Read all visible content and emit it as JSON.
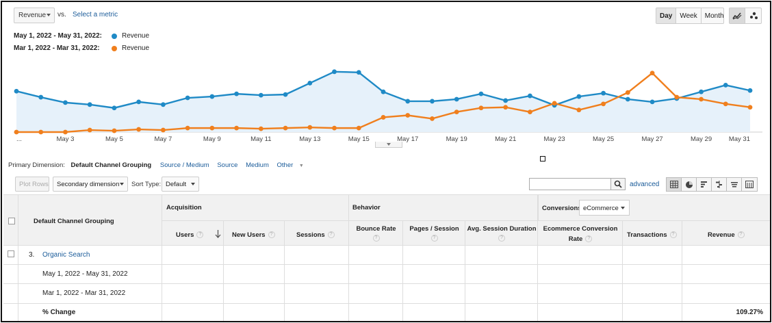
{
  "header": {
    "metric_select": "Revenue",
    "vs_label": "vs.",
    "select_metric_link": "Select a metric",
    "granularity": [
      {
        "label": "Day",
        "active": true
      },
      {
        "label": "Week",
        "active": false
      },
      {
        "label": "Month",
        "active": false
      }
    ],
    "chart_type_icons": [
      "line-chart-icon",
      "motion-chart-icon"
    ]
  },
  "legend": [
    {
      "range": "May 1, 2022 - May 31, 2022:",
      "series": "Revenue",
      "color": "#1f8ac6"
    },
    {
      "range": "Mar 1, 2022 - Mar 31, 2022:",
      "series": "Revenue",
      "color": "#f07f1d"
    }
  ],
  "chart_data": {
    "type": "line",
    "x_labels": [
      "...",
      "May 3",
      "May 5",
      "May 7",
      "May 9",
      "May 11",
      "May 13",
      "May 15",
      "May 17",
      "May 19",
      "May 21",
      "May 23",
      "May 25",
      "May 27",
      "May 29",
      "May 31"
    ],
    "x": [
      1,
      2,
      3,
      4,
      5,
      6,
      7,
      8,
      9,
      10,
      11,
      12,
      13,
      14,
      15,
      16,
      17,
      18,
      19,
      20,
      21,
      22,
      23,
      24,
      25,
      26,
      27,
      28,
      29,
      30,
      31
    ],
    "series": [
      {
        "name": "Revenue",
        "period": "May 1, 2022 - May 31, 2022",
        "color": "#1f8ac6",
        "area": true,
        "values": [
          61,
          52,
          44,
          41,
          36,
          45,
          41,
          51,
          53,
          57,
          55,
          56,
          73,
          90,
          89,
          60,
          46,
          46,
          49,
          57,
          47,
          54,
          40,
          53,
          58,
          49,
          45,
          50,
          60,
          70,
          62
        ]
      },
      {
        "name": "Revenue",
        "period": "Mar 1, 2022 - Mar 31, 2022",
        "color": "#f07f1d",
        "area": false,
        "values": [
          0,
          0,
          0,
          3,
          2,
          4,
          3,
          6,
          6,
          6,
          5,
          6,
          7,
          6,
          6,
          22,
          25,
          20,
          30,
          36,
          37,
          30,
          43,
          33,
          42,
          59,
          88,
          52,
          49,
          42,
          37
        ]
      }
    ],
    "ylim": [
      0,
      100
    ],
    "grid": false,
    "legend": "top-left"
  },
  "dimension_bar": {
    "label": "Primary Dimension:",
    "current": "Default Channel Grouping",
    "links": [
      "Source / Medium",
      "Source",
      "Medium"
    ],
    "other": "Other"
  },
  "toolbar": {
    "plot_rows": "Plot Rows",
    "secondary_dimension": "Secondary dimension",
    "sort_type_label": "Sort Type:",
    "sort_type_value": "Default",
    "search_placeholder": "",
    "advanced": "advanced",
    "view_icons": [
      "table-view-icon",
      "pie-view-icon",
      "bar-view-icon",
      "comparison-view-icon",
      "term-cloud-view-icon",
      "pivot-view-icon"
    ]
  },
  "table": {
    "dimension_header": "Default Channel Grouping",
    "groups": {
      "acquisition": "Acquisition",
      "behavior": "Behavior",
      "conversions": "Conversions",
      "conversions_select": "eCommerce"
    },
    "columns": {
      "users": "Users",
      "new_users": "New Users",
      "sessions": "Sessions",
      "bounce_rate": "Bounce Rate",
      "pages_session": "Pages / Session",
      "avg_duration": "Avg. Session Duration",
      "ecom_rate_1": "Ecommerce Conversion",
      "ecom_rate_2": "Rate",
      "transactions": "Transactions",
      "revenue": "Revenue"
    },
    "row": {
      "index": "3.",
      "name": "Organic Search"
    },
    "sub_rows": [
      "May 1, 2022 - May 31, 2022",
      "Mar 1, 2022 - Mar 31, 2022"
    ],
    "change_row": {
      "label": "% Change",
      "revenue": "109.27%"
    },
    "help_glyph": "?"
  }
}
